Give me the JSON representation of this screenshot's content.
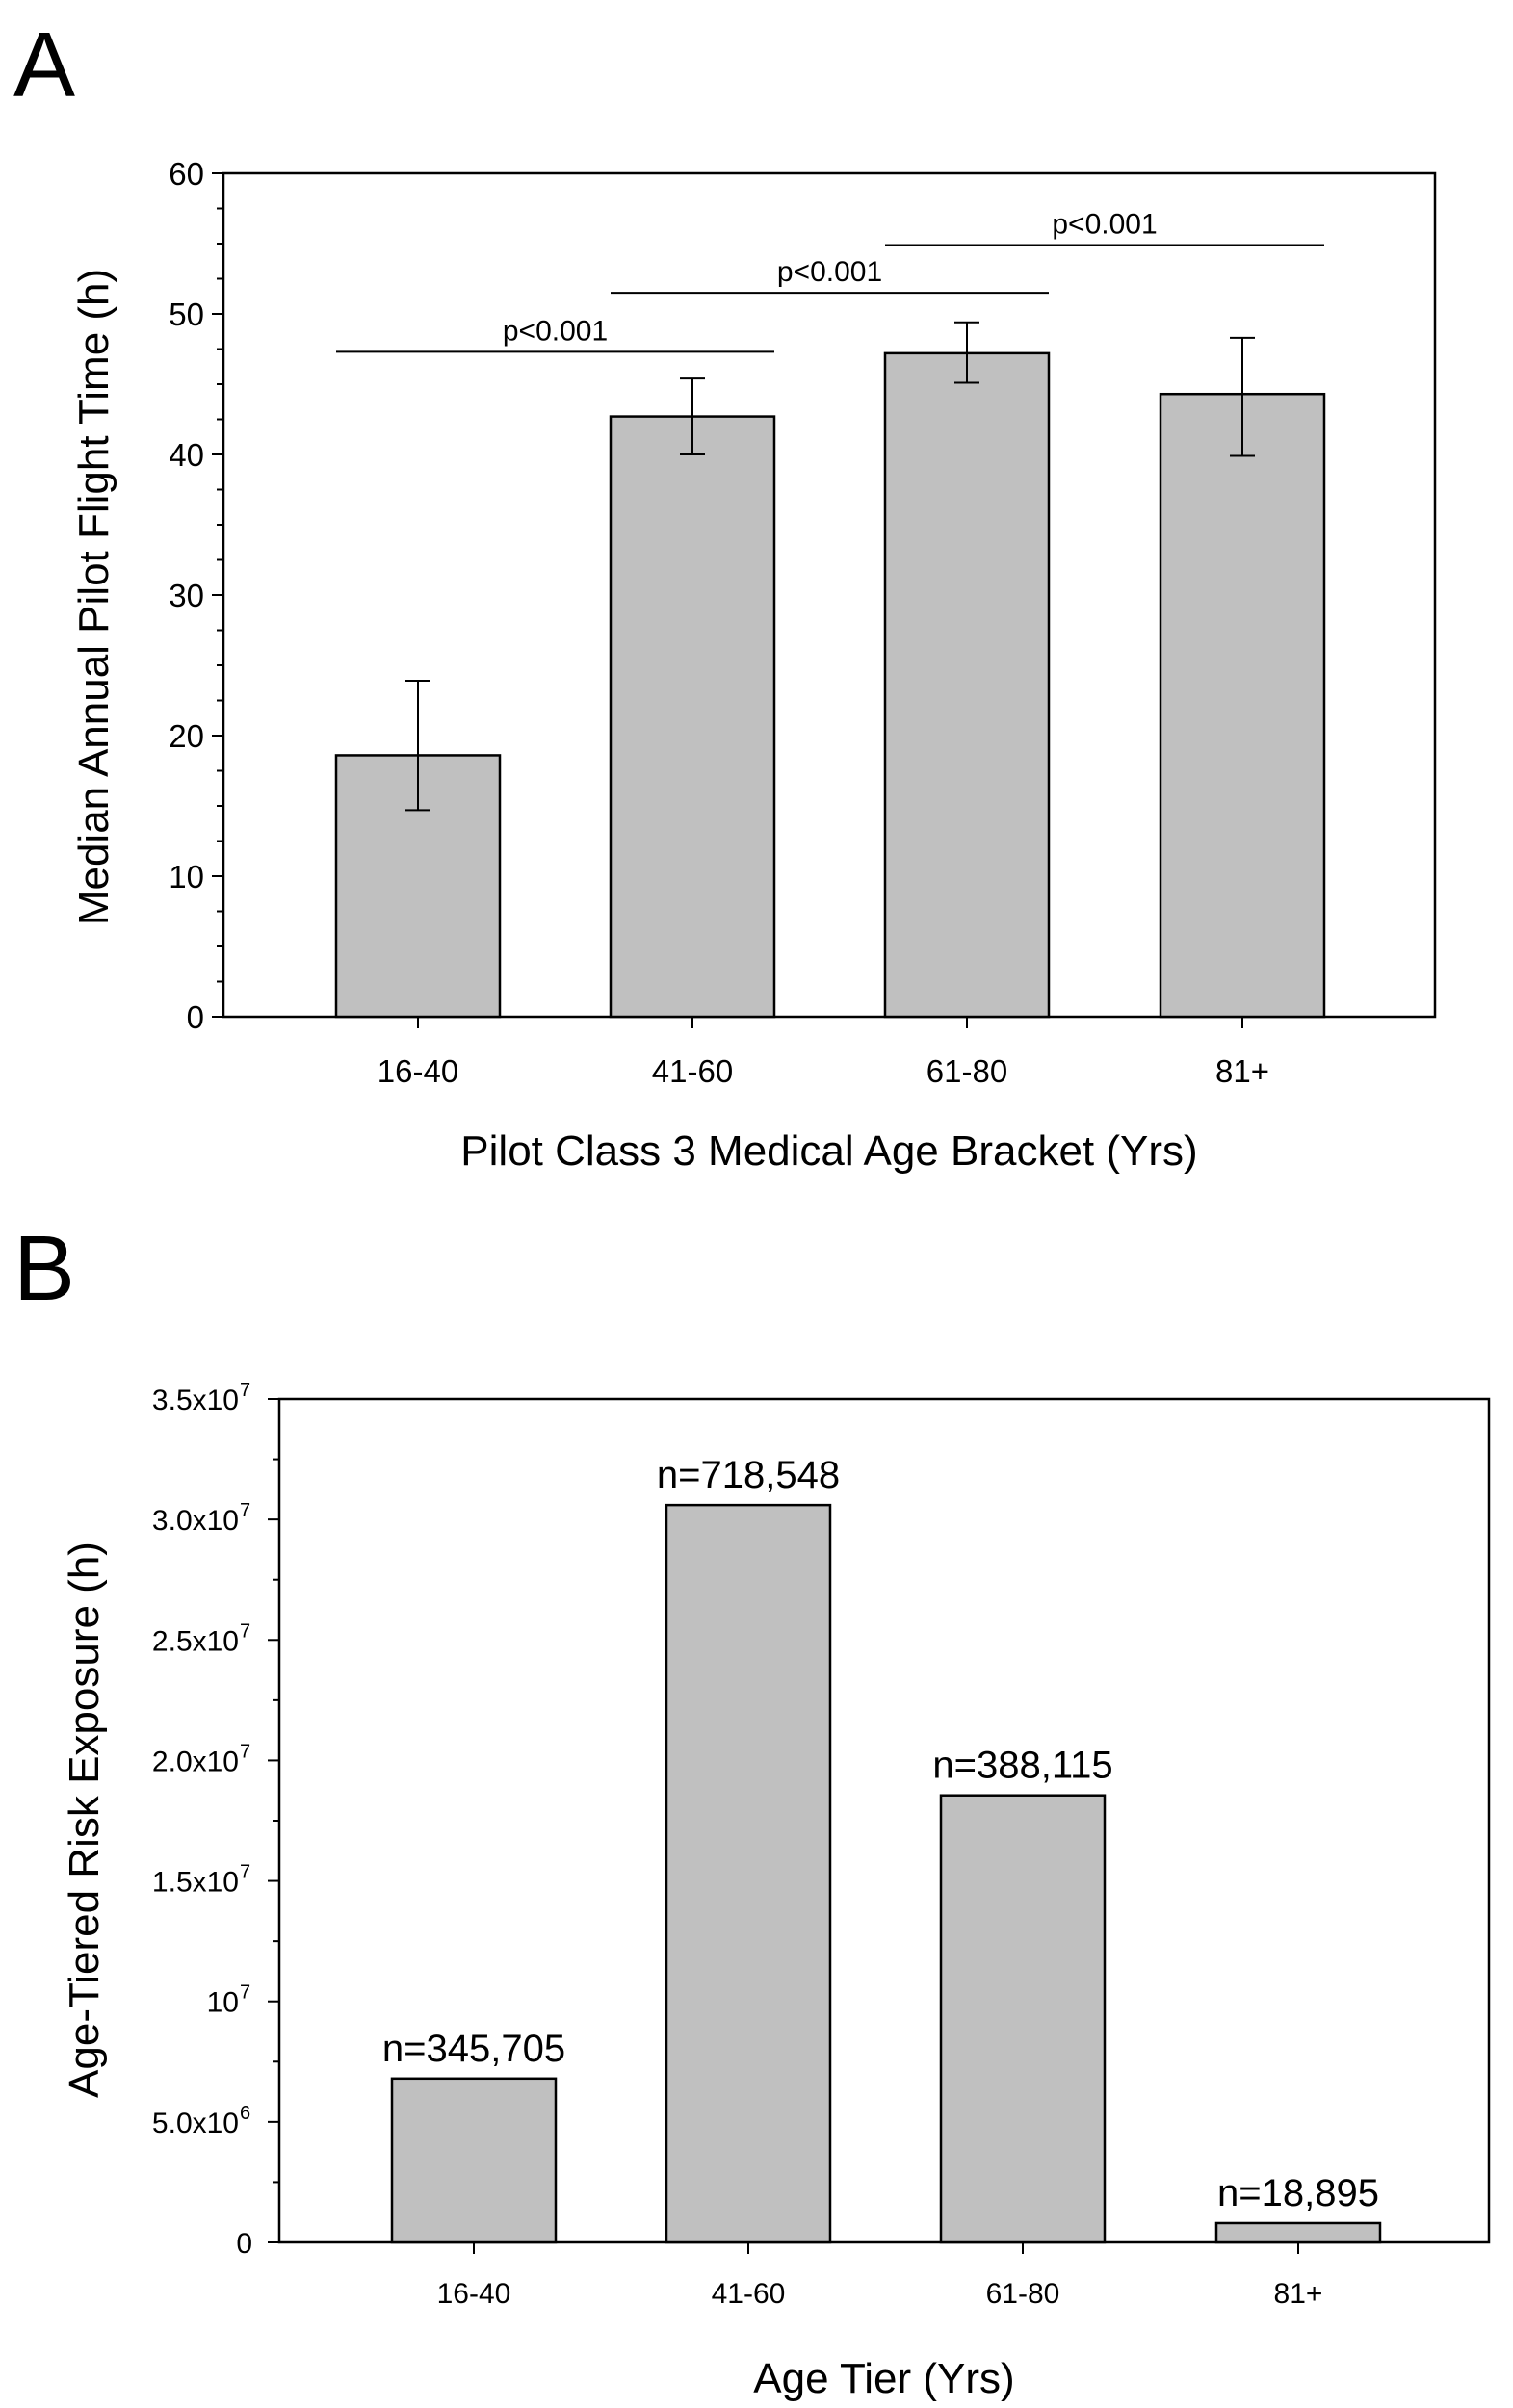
{
  "chart_data": [
    {
      "panel": "A",
      "type": "bar",
      "categories": [
        "16-40",
        "41-60",
        "61-80",
        "81+"
      ],
      "values": [
        18.6,
        42.7,
        47.2,
        44.3
      ],
      "error_low": [
        14.7,
        40.0,
        45.1,
        39.9
      ],
      "error_high": [
        23.9,
        45.4,
        49.4,
        48.3
      ],
      "ylabel": "Median Annual Pilot Flight Time (h)",
      "xlabel": "Pilot Class 3 Medical Age Bracket (Yrs)",
      "ylim": [
        0,
        60
      ],
      "yticks": [
        "0",
        "10",
        "20",
        "30",
        "40",
        "50",
        "60"
      ],
      "significance": [
        {
          "from": 0,
          "to": 1,
          "y": 47.3,
          "label": "p<0.001"
        },
        {
          "from": 1,
          "to": 2,
          "y": 51.5,
          "label": "p<0.001"
        },
        {
          "from": 2,
          "to": 3,
          "y": 54.9,
          "label": "p<0.001"
        }
      ]
    },
    {
      "panel": "B",
      "type": "bar",
      "categories": [
        "16-40",
        "41-60",
        "61-80",
        "81+"
      ],
      "values": [
        6800000,
        30600000,
        18550000,
        800000
      ],
      "bar_labels": [
        "n=345,705",
        "n=718,548",
        "n=388,115",
        "n=18,895"
      ],
      "ylabel": "Age-Tiered Risk Exposure (h)",
      "xlabel": "Age Tier (Yrs)",
      "ylim": [
        0,
        35000000
      ],
      "yticks": [
        {
          "base": "0",
          "exp": ""
        },
        {
          "base": "5.0x10",
          "exp": "6"
        },
        {
          "base": "10",
          "exp": "7"
        },
        {
          "base": "1.5x10",
          "exp": "7"
        },
        {
          "base": "2.0x10",
          "exp": "7"
        },
        {
          "base": "2.5x10",
          "exp": "7"
        },
        {
          "base": "3.0x10",
          "exp": "7"
        },
        {
          "base": "3.5x10",
          "exp": "7"
        }
      ]
    }
  ]
}
